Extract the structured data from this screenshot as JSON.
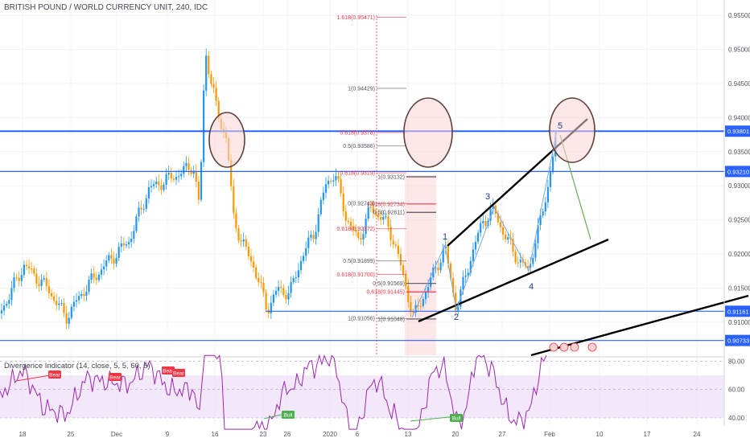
{
  "chart_data": {
    "type": "candlestick",
    "title": "BRITISH POUND / WORLD CURRENCY UNIT, 240, IDC",
    "y_ticks": [
      "0.95500",
      "0.95000",
      "0.94500",
      "0.94000",
      "0.93500",
      "0.93000",
      "0.92500",
      "0.92000",
      "0.91500",
      "0.91000"
    ],
    "price_labels": [
      {
        "value": 0.93801,
        "text": "0.93801"
      },
      {
        "value": 0.9321,
        "text": "0.93210"
      },
      {
        "value": 0.91161,
        "text": "0.91161"
      },
      {
        "value": 0.90733,
        "text": "0.90733"
      }
    ],
    "x_ticks": [
      "18",
      "25",
      "Dec",
      "9",
      "16",
      "23",
      "26",
      "2020",
      "6",
      "13",
      "20",
      "27",
      "Feb",
      "10",
      "17",
      "24"
    ],
    "horizontal_levels": [
      0.93801,
      0.9321,
      0.91161,
      0.90733
    ],
    "fib_levels_left": [
      {
        "text": "1.618(0.95471)",
        "value": 0.95471,
        "color": "#f23645"
      },
      {
        "text": "1(0.94429)",
        "value": 0.94429,
        "color": "#50535e"
      },
      {
        "text": "0.618(0.9378)",
        "value": 0.9378,
        "color": "#f23645"
      },
      {
        "text": "0.5(0.93586)",
        "value": 0.93586,
        "color": "#50535e"
      },
      {
        "text": "0.618(0.9319)",
        "value": 0.9319,
        "color": "#f23645"
      },
      {
        "text": "0(0.92743)",
        "value": 0.92743,
        "color": "#50535e"
      },
      {
        "text": "0.618(0.92372)",
        "value": 0.92372,
        "color": "#f23645"
      },
      {
        "text": "0.5(0.91899)",
        "value": 0.91899,
        "color": "#50535e"
      },
      {
        "text": "0.618(0.91700)",
        "value": 0.917,
        "color": "#f23645"
      },
      {
        "text": "1(0.91056)",
        "value": 0.91056,
        "color": "#50535e"
      }
    ],
    "fib_levels_right": [
      {
        "text": "1(0.93132)",
        "value": 0.93132,
        "color": "#50535e"
      },
      {
        "text": "1.618(0.92734)",
        "value": 0.92734,
        "color": "#f23645"
      },
      {
        "text": "0.5(0.92611)",
        "value": 0.92611,
        "color": "#50535e"
      },
      {
        "text": "0.5(0.91569)",
        "value": 0.91569,
        "color": "#50535e"
      },
      {
        "text": "0.618(0.91445)",
        "value": 0.91445,
        "color": "#f23645"
      },
      {
        "text": "1(0.91048)",
        "value": 0.91048,
        "color": "#50535e"
      }
    ],
    "wave_labels": [
      "1",
      "2",
      "3",
      "4",
      "5"
    ],
    "indicator": {
      "title": "Divergence Indicator (14, close, 5, 5, 60, 5)",
      "y_ticks": [
        "80.00",
        "60.00",
        "40.00"
      ],
      "signals": [
        "Bear",
        "Bear",
        "Bear",
        "Bear",
        "Bull",
        "Bull"
      ]
    },
    "colors": {
      "up": "#2196f3",
      "down": "#ff9800",
      "level": "#2962ff",
      "fib": "#f23645",
      "rsi": "#9c27b0",
      "bull": "#4caf50",
      "bear": "#f23645"
    }
  }
}
